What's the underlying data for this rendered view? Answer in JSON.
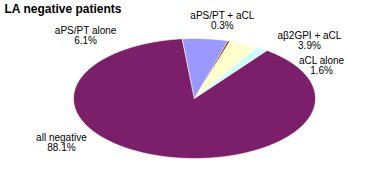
{
  "chart_data": {
    "type": "pie",
    "title": "LA negative patients",
    "categories": [
      "aPS/PT alone",
      "aPS/PT + aCL",
      "aβ2GPI + aCL",
      "aCL alone",
      "all negative"
    ],
    "values": [
      6.1,
      0.3,
      3.9,
      1.6,
      88.1
    ],
    "value_labels": [
      "6.1%",
      "0.3%",
      "3.9%",
      "1.6%",
      "88.1%"
    ],
    "colors": [
      "#9999ff",
      "#993300",
      "#ffffcc",
      "#ccffff",
      "#7b1f6b"
    ],
    "data_labels": true
  }
}
